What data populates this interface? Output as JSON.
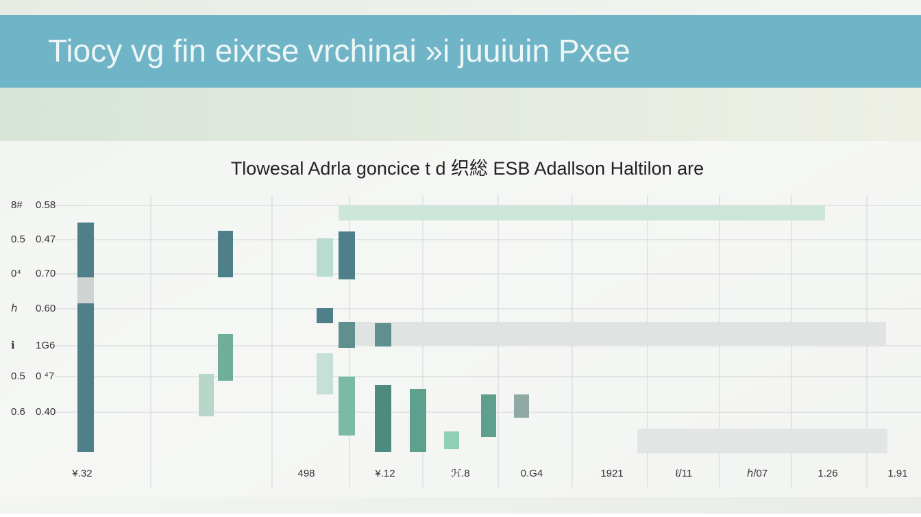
{
  "header": {
    "title": "Tiocy vg fin eixrse vrchinai »i juuiuin Pxee"
  },
  "chart": {
    "title": "Tlowesal Adrla goncice t d 织総 ESB Adallson Haltilon are",
    "y_labels_left": [
      "8#",
      "0.5",
      "0⁴",
      "ℎ",
      "ℹ",
      "0.5",
      "0.6"
    ],
    "y_labels_right": [
      "0.58",
      "0.47",
      "0.70",
      "0.60",
      "1G6",
      "0 ⁴7",
      "0.40"
    ],
    "x_labels": [
      "¥.32",
      "498",
      "¥.12",
      "ℋ.8",
      "0.G4",
      "1921",
      "ℓ/11",
      "ℎ/07",
      "1.26",
      "1.91"
    ]
  }
}
